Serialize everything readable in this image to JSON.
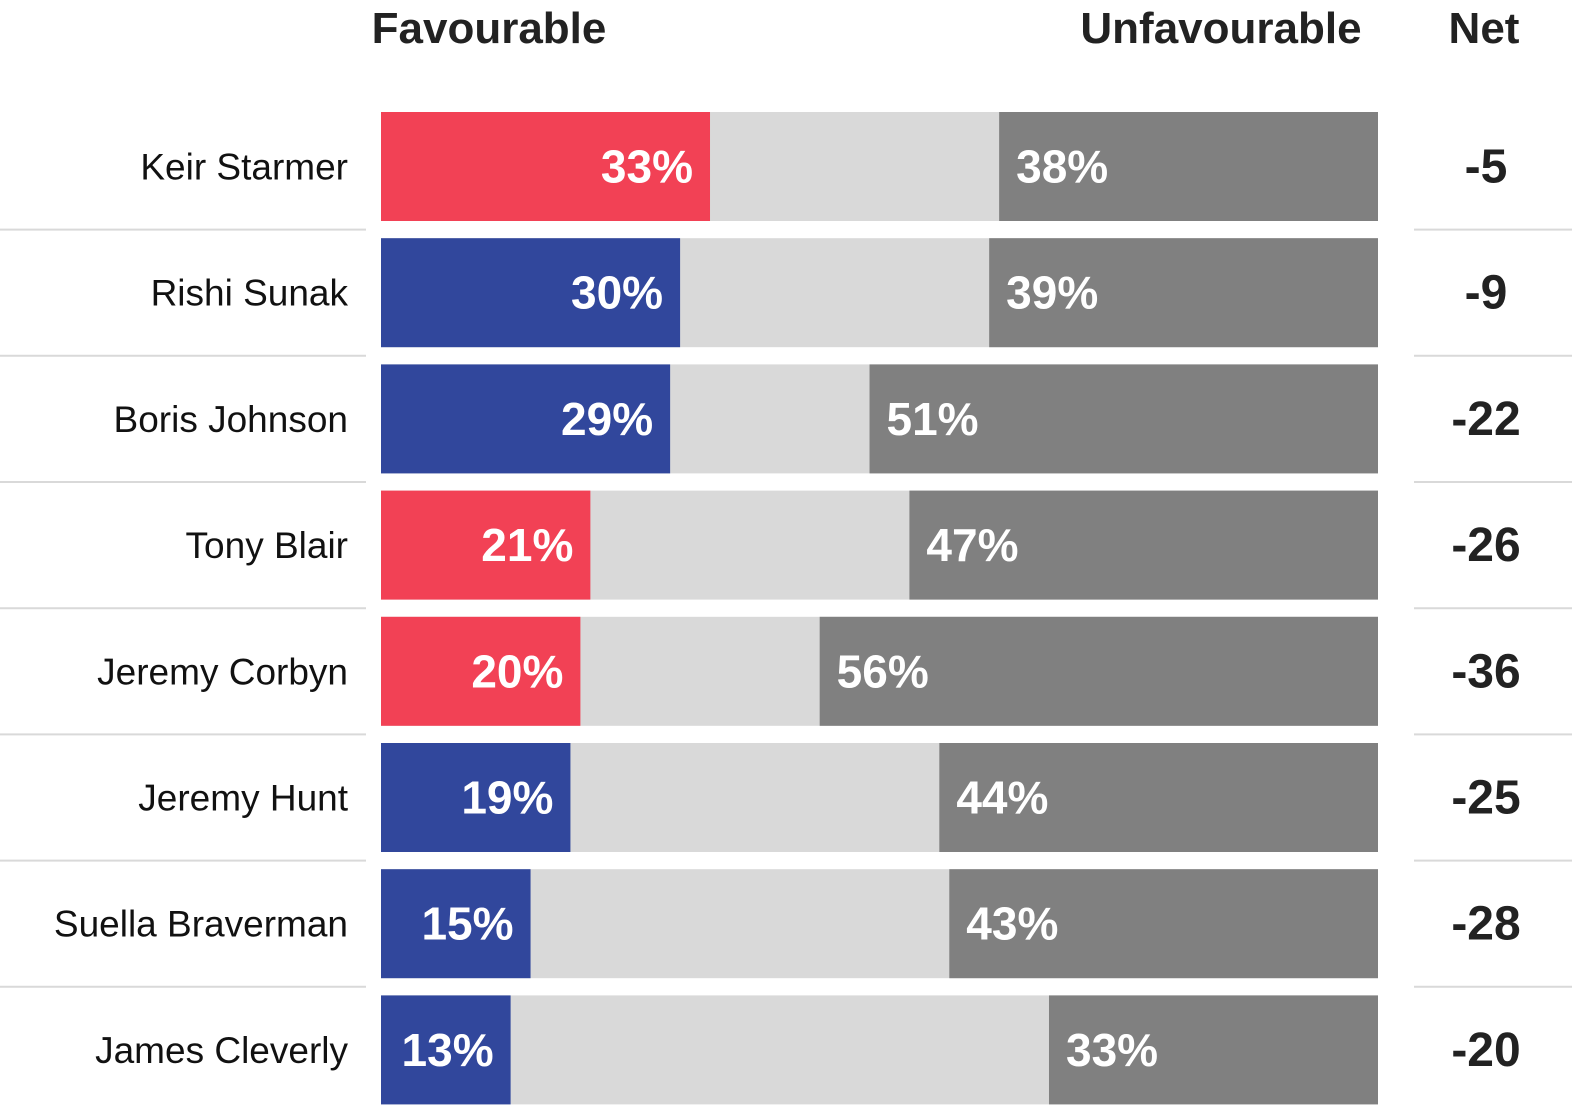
{
  "headers": {
    "favourable": "Favourable",
    "unfavourable": "Unfavourable",
    "net": "Net"
  },
  "colors": {
    "labour": "#f24155",
    "conservative": "#31479c",
    "neutral": "#d9d9d9",
    "unfavourable": "#808080",
    "divider": "#d9d9d9"
  },
  "chart_data": {
    "type": "bar",
    "stacked": true,
    "orientation": "horizontal",
    "xlim": [
      0,
      100
    ],
    "categories": [
      "Keir Starmer",
      "Rishi Sunak",
      "Boris Johnson",
      "Tony Blair",
      "Jeremy Corbyn",
      "Jeremy Hunt",
      "Suella Braverman",
      "James Cleverly"
    ],
    "party": [
      "labour",
      "conservative",
      "conservative",
      "labour",
      "labour",
      "conservative",
      "conservative",
      "conservative"
    ],
    "series": [
      {
        "name": "Favourable",
        "values": [
          33,
          30,
          29,
          21,
          20,
          19,
          15,
          13
        ]
      },
      {
        "name": "Unfavourable",
        "values": [
          38,
          39,
          51,
          47,
          56,
          44,
          43,
          33
        ]
      }
    ],
    "favourable_labels": [
      "33%",
      "30%",
      "29%",
      "21%",
      "20%",
      "19%",
      "15%",
      "13%"
    ],
    "unfavourable_labels": [
      "38%",
      "39%",
      "51%",
      "47%",
      "56%",
      "44%",
      "43%",
      "33%"
    ],
    "net": [
      "-5",
      "-9",
      "-22",
      "-26",
      "-36",
      "-25",
      "-28",
      "-20"
    ]
  }
}
